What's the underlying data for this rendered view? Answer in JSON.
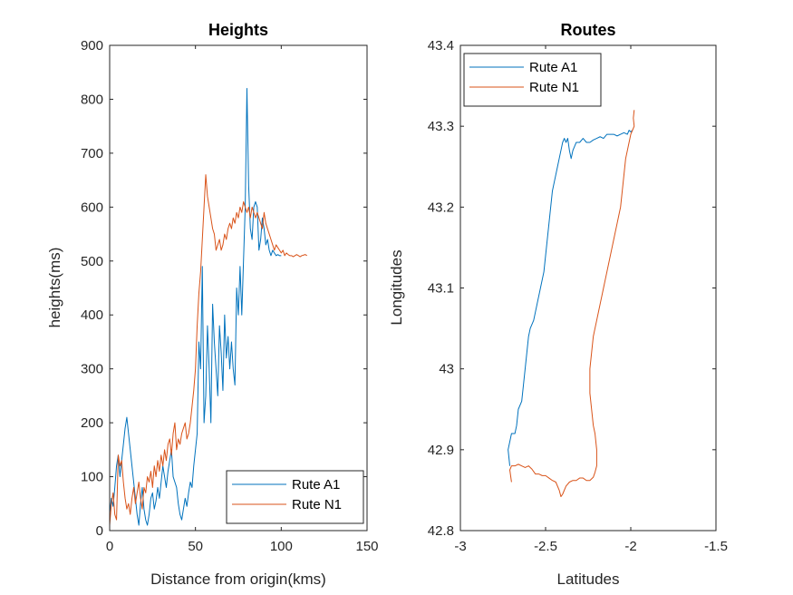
{
  "colors": {
    "series_a": "#0072BD",
    "series_b": "#D95319"
  },
  "chart_data": [
    {
      "id": "heights",
      "type": "line",
      "title": "Heights",
      "xlabel": "Distance from origin(kms)",
      "ylabel": "heights(ms)",
      "xlim": [
        0,
        150
      ],
      "ylim": [
        0,
        900
      ],
      "xticks": [
        0,
        50,
        100,
        150
      ],
      "yticks": [
        0,
        100,
        200,
        300,
        400,
        500,
        600,
        700,
        800,
        900
      ],
      "legend": "bottom-right",
      "series": [
        {
          "name": "Rute A1",
          "color": "#0072BD",
          "x": [
            0,
            1,
            2,
            3,
            4,
            5,
            6,
            7,
            8,
            9,
            10,
            11,
            12,
            13,
            14,
            15,
            16,
            17,
            18,
            19,
            20,
            21,
            22,
            23,
            24,
            25,
            26,
            27,
            28,
            29,
            30,
            31,
            32,
            33,
            34,
            35,
            36,
            37,
            38,
            39,
            40,
            41,
            42,
            43,
            44,
            45,
            46,
            47,
            48,
            49,
            50,
            51,
            52,
            53,
            54,
            55,
            56,
            57,
            58,
            59,
            60,
            61,
            62,
            63,
            64,
            65,
            66,
            67,
            68,
            69,
            70,
            71,
            72,
            73,
            74,
            75,
            76,
            77,
            78,
            79,
            80,
            81,
            82,
            83,
            84,
            85,
            86,
            87,
            88,
            89,
            90,
            91,
            92,
            93,
            94,
            95,
            96,
            97,
            98,
            99,
            100
          ],
          "y": [
            30,
            60,
            45,
            80,
            120,
            140,
            100,
            130,
            160,
            190,
            210,
            180,
            150,
            120,
            90,
            60,
            30,
            10,
            50,
            80,
            40,
            20,
            10,
            30,
            60,
            70,
            40,
            55,
            80,
            60,
            90,
            120,
            100,
            80,
            110,
            130,
            150,
            100,
            90,
            80,
            50,
            30,
            20,
            40,
            60,
            45,
            70,
            90,
            80,
            120,
            150,
            180,
            350,
            300,
            490,
            200,
            250,
            380,
            300,
            200,
            420,
            350,
            300,
            250,
            380,
            330,
            260,
            400,
            320,
            360,
            300,
            350,
            300,
            270,
            450,
            400,
            490,
            400,
            500,
            600,
            820,
            640,
            560,
            540,
            600,
            610,
            600,
            520,
            540,
            580,
            560,
            530,
            540,
            520,
            510,
            520,
            515,
            510,
            512,
            510,
            510
          ]
        },
        {
          "name": "Rute N1",
          "color": "#D95319",
          "x": [
            0,
            1,
            2,
            3,
            4,
            5,
            6,
            7,
            8,
            9,
            10,
            11,
            12,
            13,
            14,
            15,
            16,
            17,
            18,
            19,
            20,
            21,
            22,
            23,
            24,
            25,
            26,
            27,
            28,
            29,
            30,
            31,
            32,
            33,
            34,
            35,
            36,
            37,
            38,
            39,
            40,
            41,
            42,
            43,
            44,
            45,
            46,
            47,
            48,
            49,
            50,
            51,
            52,
            53,
            54,
            55,
            56,
            57,
            58,
            59,
            60,
            61,
            62,
            63,
            64,
            65,
            66,
            67,
            68,
            69,
            70,
            71,
            72,
            73,
            74,
            75,
            76,
            77,
            78,
            79,
            80,
            81,
            82,
            83,
            84,
            85,
            86,
            87,
            88,
            89,
            90,
            91,
            92,
            93,
            94,
            95,
            96,
            97,
            98,
            99,
            100,
            101,
            102,
            103,
            104,
            105,
            106,
            107,
            108,
            109,
            110,
            111,
            112,
            113,
            114,
            115
          ],
          "y": [
            10,
            50,
            70,
            30,
            20,
            140,
            120,
            130,
            90,
            60,
            40,
            50,
            30,
            60,
            80,
            50,
            70,
            90,
            60,
            40,
            80,
            70,
            100,
            90,
            110,
            80,
            120,
            100,
            130,
            110,
            140,
            120,
            150,
            130,
            160,
            170,
            140,
            180,
            200,
            150,
            170,
            160,
            180,
            190,
            200,
            170,
            180,
            200,
            230,
            260,
            300,
            380,
            440,
            480,
            540,
            600,
            660,
            620,
            600,
            580,
            560,
            550,
            520,
            530,
            540,
            520,
            530,
            550,
            540,
            560,
            570,
            560,
            580,
            570,
            590,
            580,
            600,
            590,
            610,
            600,
            590,
            600,
            580,
            600,
            590,
            580,
            590,
            580,
            570,
            560,
            590,
            570,
            560,
            550,
            540,
            530,
            520,
            530,
            525,
            520,
            515,
            520,
            510,
            515,
            512,
            510,
            510,
            508,
            510,
            512,
            510,
            508,
            510,
            511,
            512,
            510
          ]
        }
      ]
    },
    {
      "id": "routes",
      "type": "line",
      "title": "Routes",
      "xlabel": "Latitudes",
      "ylabel": "Longitudes",
      "xlim": [
        -3,
        -1.5
      ],
      "ylim": [
        42.8,
        43.4
      ],
      "xticks": [
        -3,
        -2.5,
        -2,
        -1.5
      ],
      "xtick_labels": [
        "-3",
        "-2.5",
        "-2",
        "-1.5"
      ],
      "yticks": [
        42.8,
        42.9,
        43,
        43.1,
        43.2,
        43.3,
        43.4
      ],
      "ytick_labels": [
        "42.8",
        "42.9",
        "43",
        "43.1",
        "43.2",
        "43.3",
        "43.4"
      ],
      "legend": "top-left",
      "series": [
        {
          "name": "Rute A1",
          "color": "#0072BD",
          "x": [
            -2.71,
            -2.72,
            -2.7,
            -2.68,
            -2.67,
            -2.66,
            -2.64,
            -2.63,
            -2.62,
            -2.61,
            -2.6,
            -2.59,
            -2.57,
            -2.55,
            -2.53,
            -2.51,
            -2.5,
            -2.49,
            -2.48,
            -2.47,
            -2.46,
            -2.45,
            -2.44,
            -2.43,
            -2.42,
            -2.41,
            -2.4,
            -2.39,
            -2.38,
            -2.37,
            -2.36,
            -2.35,
            -2.34,
            -2.32,
            -2.3,
            -2.28,
            -2.26,
            -2.24,
            -2.22,
            -2.2,
            -2.18,
            -2.16,
            -2.14,
            -2.12,
            -2.1,
            -2.08,
            -2.06,
            -2.04,
            -2.02,
            -2.01,
            -2.0,
            -1.99
          ],
          "y": [
            42.88,
            42.9,
            42.92,
            42.92,
            42.93,
            42.95,
            42.96,
            42.98,
            43.0,
            43.02,
            43.04,
            43.05,
            43.06,
            43.08,
            43.1,
            43.12,
            43.14,
            43.16,
            43.18,
            43.2,
            43.22,
            43.23,
            43.24,
            43.25,
            43.26,
            43.27,
            43.28,
            43.285,
            43.28,
            43.285,
            43.27,
            43.26,
            43.27,
            43.28,
            43.28,
            43.285,
            43.28,
            43.28,
            43.283,
            43.285,
            43.287,
            43.285,
            43.29,
            43.29,
            43.29,
            43.288,
            43.29,
            43.292,
            43.29,
            43.295,
            43.293,
            43.295
          ]
        },
        {
          "name": "Rute N1",
          "color": "#D95319",
          "x": [
            -2.7,
            -2.71,
            -2.7,
            -2.68,
            -2.66,
            -2.64,
            -2.62,
            -2.6,
            -2.58,
            -2.56,
            -2.54,
            -2.52,
            -2.5,
            -2.48,
            -2.46,
            -2.44,
            -2.42,
            -2.41,
            -2.4,
            -2.38,
            -2.36,
            -2.34,
            -2.32,
            -2.3,
            -2.28,
            -2.26,
            -2.24,
            -2.22,
            -2.21,
            -2.2,
            -2.2,
            -2.21,
            -2.22,
            -2.23,
            -2.24,
            -2.24,
            -2.23,
            -2.22,
            -2.21,
            -2.2,
            -2.19,
            -2.18,
            -2.17,
            -2.16,
            -2.15,
            -2.14,
            -2.13,
            -2.12,
            -2.11,
            -2.1,
            -2.09,
            -2.08,
            -2.07,
            -2.06,
            -2.05,
            -2.04,
            -2.03,
            -2.02,
            -2.01,
            -2.0,
            -1.99,
            -1.98,
            -1.985,
            -1.98
          ],
          "y": [
            42.86,
            42.875,
            42.88,
            42.88,
            42.882,
            42.88,
            42.878,
            42.88,
            42.876,
            42.87,
            42.87,
            42.868,
            42.868,
            42.865,
            42.862,
            42.86,
            42.85,
            42.842,
            42.845,
            42.855,
            42.86,
            42.862,
            42.862,
            42.865,
            42.865,
            42.862,
            42.862,
            42.866,
            42.872,
            42.88,
            42.9,
            42.92,
            42.93,
            42.95,
            42.97,
            43.0,
            43.02,
            43.04,
            43.05,
            43.06,
            43.07,
            43.08,
            43.09,
            43.1,
            43.11,
            43.12,
            43.13,
            43.14,
            43.15,
            43.16,
            43.17,
            43.18,
            43.19,
            43.2,
            43.22,
            43.24,
            43.26,
            43.27,
            43.28,
            43.29,
            43.295,
            43.3,
            43.31,
            43.32
          ]
        }
      ]
    }
  ]
}
